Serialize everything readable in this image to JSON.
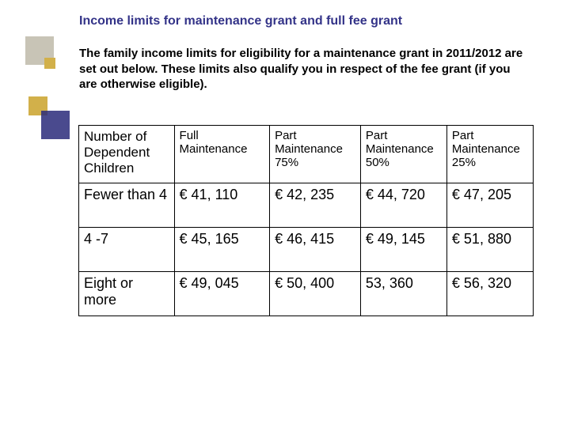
{
  "title": "Income limits for maintenance grant and full fee grant",
  "body": "The family income limits for eligibility for a maintenance grant in 2011/2012 are set out below. These limits also qualify you in respect of the fee grant (if you are otherwise eligible).",
  "accent_colors": {
    "gray": "#c8c4b6",
    "gold": "#d2b04a",
    "navy": "#2a2a7a"
  },
  "table": {
    "type": "table",
    "border_color": "#000000",
    "header_fontsize": 15,
    "body_fontsize": 18,
    "columns": [
      "Number of Dependent Children",
      "Full Maintenance",
      "Part Maintenance 75%",
      "Part Maintenance 50%",
      "Part Maintenance 25%"
    ],
    "rows": [
      [
        "Fewer than 4",
        "€ 41, 110",
        "€ 42, 235",
        "€ 44, 720",
        "€ 47, 205"
      ],
      [
        "4 -7",
        "€ 45, 165",
        "€ 46, 415",
        "€ 49, 145",
        "€ 51, 880"
      ],
      [
        "Eight or more",
        "€ 49, 045",
        "€ 50, 400",
        "53, 360",
        "€ 56, 320"
      ]
    ]
  }
}
